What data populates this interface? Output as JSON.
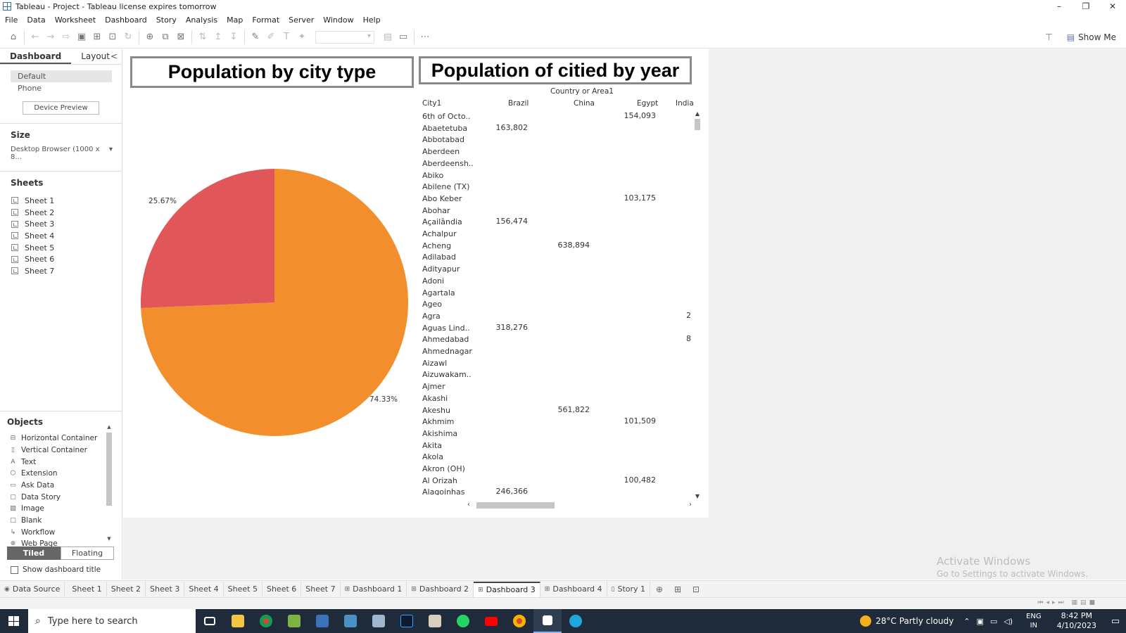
{
  "window": {
    "title": "Tableau - Project - Tableau license expires tomorrow",
    "controls": [
      "–",
      "❐",
      "✕"
    ]
  },
  "menu": [
    "File",
    "Data",
    "Worksheet",
    "Dashboard",
    "Story",
    "Analysis",
    "Map",
    "Format",
    "Server",
    "Window",
    "Help"
  ],
  "toolbar": {
    "show_me": "Show Me"
  },
  "left_panel": {
    "tabs": [
      "Dashboard",
      "Layout"
    ],
    "collapse_icon": "<",
    "devices": [
      "Default",
      "Phone"
    ],
    "device_preview": "Device Preview",
    "size_title": "Size",
    "size_value": "Desktop Browser (1000 x 8...",
    "sheets_title": "Sheets",
    "sheets": [
      "Sheet 1",
      "Sheet 2",
      "Sheet 3",
      "Sheet 4",
      "Sheet 5",
      "Sheet 6",
      "Sheet 7"
    ],
    "objects_title": "Objects",
    "objects": [
      {
        "label": "Horizontal Container",
        "icon": "horizontal-container-icon"
      },
      {
        "label": "Vertical Container",
        "icon": "vertical-container-icon"
      },
      {
        "label": "Text",
        "icon": "text-icon"
      },
      {
        "label": "Extension",
        "icon": "extension-icon"
      },
      {
        "label": "Ask Data",
        "icon": "ask-data-icon"
      },
      {
        "label": "Data Story",
        "icon": "data-story-icon"
      },
      {
        "label": "Image",
        "icon": "image-icon"
      },
      {
        "label": "Blank",
        "icon": "blank-icon"
      },
      {
        "label": "Workflow",
        "icon": "workflow-icon"
      },
      {
        "label": "Web Page",
        "icon": "web-page-icon"
      }
    ],
    "layout_modes": [
      "Tiled",
      "Floating"
    ],
    "show_dashboard_title": "Show dashboard title"
  },
  "dashboard": {
    "pie_title": "Population by city type",
    "table_title": "Population of citied by year"
  },
  "chart_data": {
    "type": "pie",
    "slices": [
      {
        "label": "74.33%",
        "value": 74.33,
        "color": "#f28e2b"
      },
      {
        "label": "25.67%",
        "value": 25.67,
        "color": "#e15759"
      }
    ]
  },
  "crosstab": {
    "column_group": "Country or Area1",
    "row_header": "City1",
    "columns": [
      "Brazil",
      "China",
      "Egypt",
      "India"
    ],
    "rows": [
      {
        "city": "6th of Octo..",
        "values": [
          "",
          "",
          "154,093",
          ""
        ]
      },
      {
        "city": "Abaetetuba",
        "values": [
          "163,802",
          "",
          "",
          ""
        ]
      },
      {
        "city": "Abbotabad",
        "values": [
          "",
          "",
          "",
          ""
        ]
      },
      {
        "city": "Aberdeen",
        "values": [
          "",
          "",
          "",
          ""
        ]
      },
      {
        "city": "Aberdeensh..",
        "values": [
          "",
          "",
          "",
          ""
        ]
      },
      {
        "city": "Abiko",
        "values": [
          "",
          "",
          "",
          ""
        ]
      },
      {
        "city": "Abilene (TX)",
        "values": [
          "",
          "",
          "",
          ""
        ]
      },
      {
        "city": "Abo Keber",
        "values": [
          "",
          "",
          "103,175",
          ""
        ]
      },
      {
        "city": "Abohar",
        "values": [
          "",
          "",
          "",
          ""
        ]
      },
      {
        "city": "Açailândia",
        "values": [
          "156,474",
          "",
          "",
          ""
        ]
      },
      {
        "city": "Achalpur",
        "values": [
          "",
          "",
          "",
          ""
        ]
      },
      {
        "city": "Acheng",
        "values": [
          "",
          "638,894",
          "",
          ""
        ]
      },
      {
        "city": "Adilabad",
        "values": [
          "",
          "",
          "",
          ""
        ]
      },
      {
        "city": "Adityapur",
        "values": [
          "",
          "",
          "",
          ""
        ]
      },
      {
        "city": "Adoni",
        "values": [
          "",
          "",
          "",
          ""
        ]
      },
      {
        "city": "Agartala",
        "values": [
          "",
          "",
          "",
          ""
        ]
      },
      {
        "city": "Ageo",
        "values": [
          "",
          "",
          "",
          ""
        ]
      },
      {
        "city": "Agra",
        "values": [
          "",
          "",
          "",
          "2"
        ]
      },
      {
        "city": "Aguas Lind..",
        "values": [
          "318,276",
          "",
          "",
          ""
        ]
      },
      {
        "city": "Ahmedabad",
        "values": [
          "",
          "",
          "",
          "8"
        ]
      },
      {
        "city": "Ahmednagar",
        "values": [
          "",
          "",
          "",
          ""
        ]
      },
      {
        "city": "Aizawl",
        "values": [
          "",
          "",
          "",
          ""
        ]
      },
      {
        "city": "Aizuwakam..",
        "values": [
          "",
          "",
          "",
          ""
        ]
      },
      {
        "city": "Ajmer",
        "values": [
          "",
          "",
          "",
          ""
        ]
      },
      {
        "city": "Akashi",
        "values": [
          "",
          "",
          "",
          ""
        ]
      },
      {
        "city": "Akeshu",
        "values": [
          "",
          "561,822",
          "",
          ""
        ]
      },
      {
        "city": "Akhmim",
        "values": [
          "",
          "",
          "101,509",
          ""
        ]
      },
      {
        "city": "Akishima",
        "values": [
          "",
          "",
          "",
          ""
        ]
      },
      {
        "city": "Akita",
        "values": [
          "",
          "",
          "",
          ""
        ]
      },
      {
        "city": "Akola",
        "values": [
          "",
          "",
          "",
          ""
        ]
      },
      {
        "city": "Akron (OH)",
        "values": [
          "",
          "",
          "",
          ""
        ]
      },
      {
        "city": "Al Orizah",
        "values": [
          "",
          "",
          "100,482",
          ""
        ]
      },
      {
        "city": "Alagoinhas",
        "values": [
          "246,366",
          "",
          "",
          ""
        ]
      }
    ]
  },
  "watermark": {
    "line1": "Activate Windows",
    "line2": "Go to Settings to activate Windows."
  },
  "bottom_tabs": {
    "data_source": "Data Source",
    "tabs": [
      "Sheet 1",
      "Sheet 2",
      "Sheet 3",
      "Sheet 4",
      "Sheet 5",
      "Sheet 6",
      "Sheet 7",
      "Dashboard 1",
      "Dashboard 2",
      "Dashboard 3",
      "Dashboard 4",
      "Story 1"
    ],
    "active": "Dashboard 3"
  },
  "taskbar": {
    "search_placeholder": "Type here to search",
    "weather": "28°C  Partly cloudy",
    "lang1": "ENG",
    "lang2": "IN",
    "time": "8:42 PM",
    "date": "4/10/2023"
  }
}
